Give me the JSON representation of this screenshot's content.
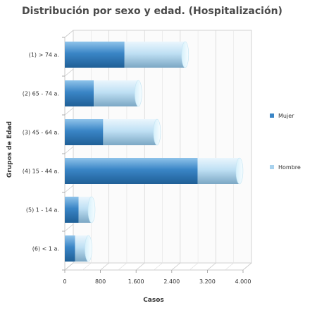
{
  "chart_data": {
    "type": "bar",
    "orientation": "horizontal",
    "style": "3d-cylinder-stacked",
    "title": "Distribución por sexo y edad. (Hospitalización)",
    "xlabel": "Casos",
    "ylabel": "Grupos de Edad",
    "categories": [
      "(1) > 74 a.",
      "(2) 65 - 74 a.",
      "(3) 45 - 64 a.",
      "(4) 15 - 44 a.",
      "(5) 1 - 14 a.",
      "(6) < 1 a."
    ],
    "series": [
      {
        "name": "Mujer",
        "color": "#3a85c6",
        "values": [
          1340,
          650,
          860,
          2980,
          310,
          230
        ]
      },
      {
        "name": "Hombre",
        "color": "#a8d2ee",
        "values": [
          1360,
          1000,
          1210,
          940,
          290,
          300
        ]
      }
    ],
    "xlim": [
      0,
      4000
    ],
    "xticks": [
      "0",
      "800",
      "1.600",
      "2.400",
      "3.200",
      "4.000"
    ],
    "xtick_values": [
      0,
      800,
      1600,
      2400,
      3200,
      4000
    ],
    "grid": true,
    "legend_position": "right"
  }
}
